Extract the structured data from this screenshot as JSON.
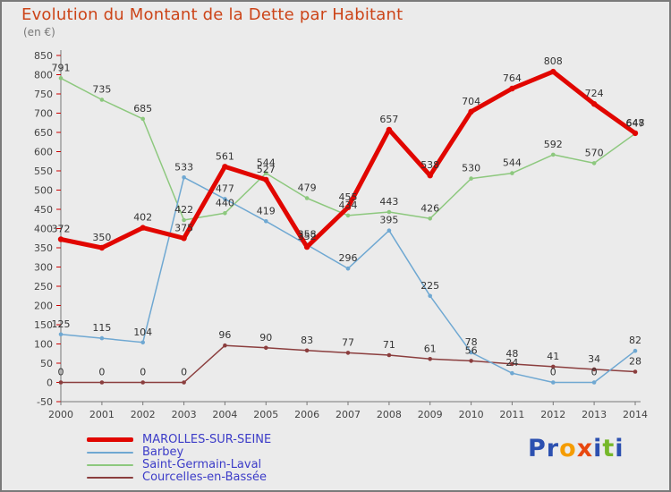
{
  "header": {
    "title": "Evolution du Montant de la Dette par Habitant",
    "subtitle": "(en €)",
    "title_color": "#cc4418"
  },
  "chart_data": {
    "type": "line",
    "x": [
      2000,
      2001,
      2002,
      2003,
      2004,
      2005,
      2006,
      2007,
      2008,
      2009,
      2010,
      2011,
      2012,
      2013,
      2014
    ],
    "ylim": [
      -50,
      850
    ],
    "ytick_step": 50,
    "grid": false,
    "legend_position": "bottom-left",
    "series": [
      {
        "name": "MAROLLES-SUR-SEINE",
        "color": "#e10600",
        "width": 5,
        "values": [
          372,
          350,
          402,
          375,
          561,
          527,
          352,
          455,
          657,
          538,
          704,
          764,
          808,
          724,
          648
        ]
      },
      {
        "name": "Barbey",
        "color": "#6fa8d2",
        "width": 1.5,
        "values": [
          125,
          115,
          104,
          533,
          477,
          419,
          358,
          296,
          395,
          225,
          78,
          24,
          0,
          0,
          82
        ]
      },
      {
        "name": "Saint-Germain-Laval",
        "color": "#8dc87e",
        "width": 1.5,
        "values": [
          791,
          735,
          685,
          422,
          440,
          544,
          479,
          434,
          443,
          426,
          530,
          544,
          592,
          570,
          647
        ]
      },
      {
        "name": "Courcelles-en-Bassée",
        "color": "#8b3e3e",
        "width": 1.5,
        "values": [
          0,
          0,
          0,
          0,
          96,
          90,
          83,
          77,
          71,
          61,
          56,
          48,
          41,
          34,
          28
        ]
      }
    ]
  },
  "logo": {
    "letters": [
      {
        "ch": "P",
        "color": "#2c50b0"
      },
      {
        "ch": "r",
        "color": "#2c50b0"
      },
      {
        "ch": "o",
        "color": "#f59c00"
      },
      {
        "ch": "x",
        "color": "#e8470f"
      },
      {
        "ch": "i",
        "color": "#2c50b0"
      },
      {
        "ch": "t",
        "color": "#76b82a"
      },
      {
        "ch": "i",
        "color": "#2c50b0"
      }
    ]
  }
}
